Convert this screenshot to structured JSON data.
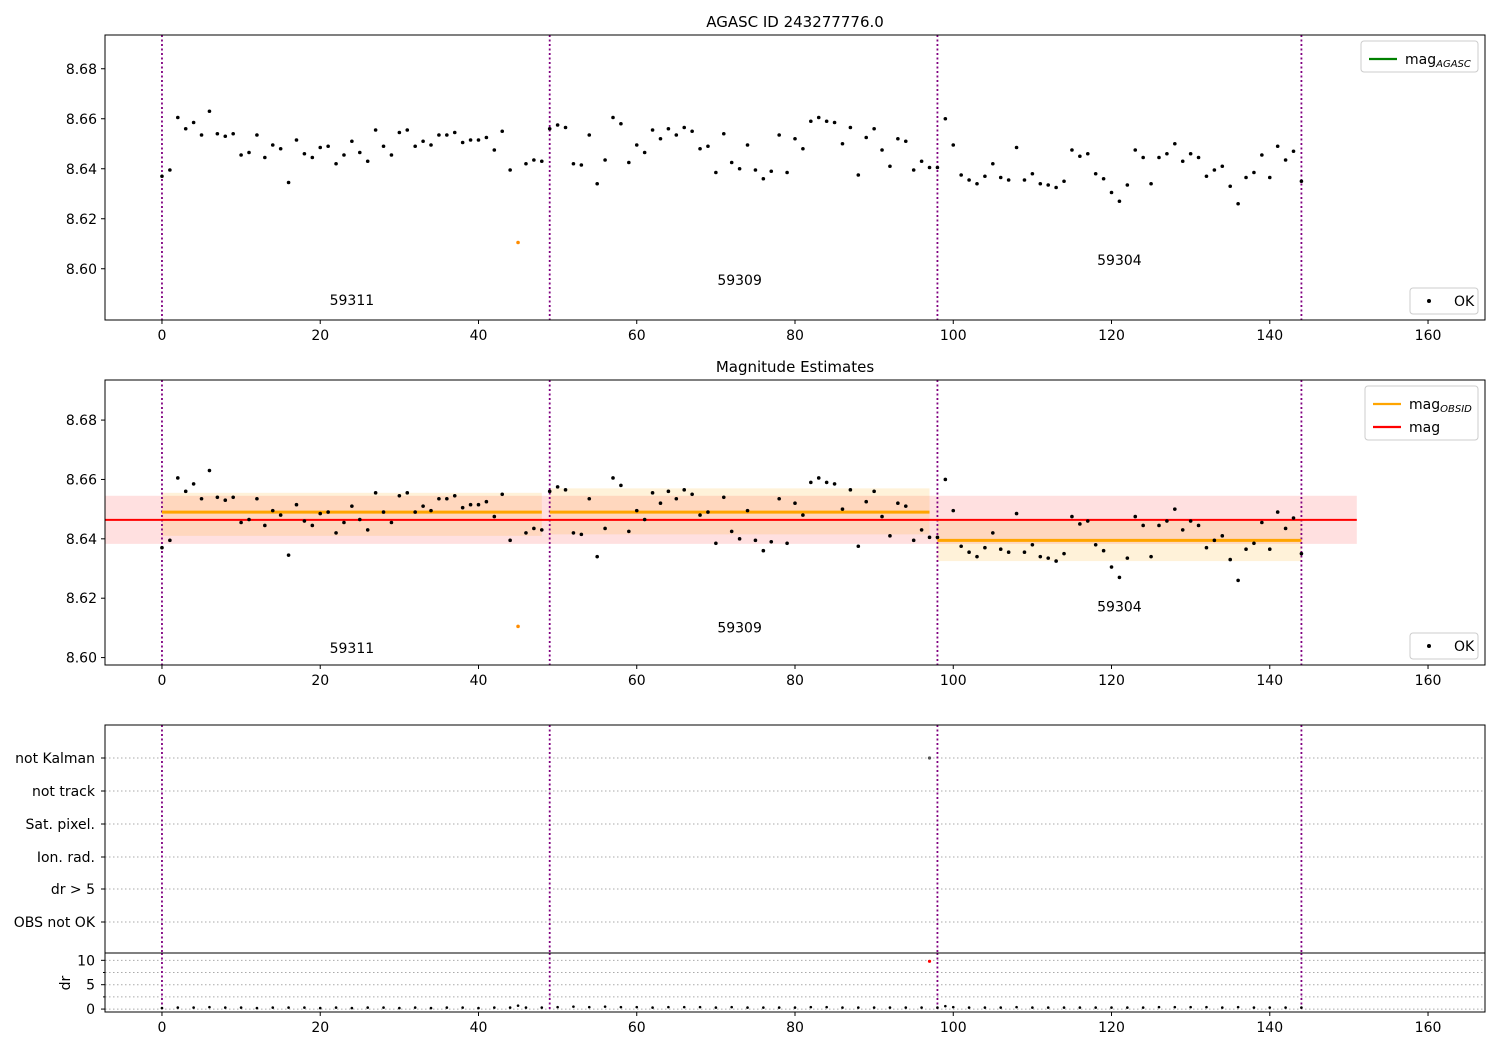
{
  "colors": {
    "ok_points": "#000000",
    "flagged_point": "#ff8c00",
    "obs_divider": "#800080",
    "mag_agasc_line": "#008000",
    "mag_obsid_line": "#ffa500",
    "mag_line": "#ff0000",
    "dr_flag": "#ff0000"
  },
  "chart_data": [
    {
      "type": "scatter",
      "title": "AGASC ID 243277776.0",
      "xlim": [
        -7.2,
        167.2
      ],
      "ylim": [
        8.5795,
        8.6935
      ],
      "yticks": [
        8.6,
        8.62,
        8.64,
        8.66,
        8.68
      ],
      "xticks": [
        0,
        20,
        40,
        60,
        80,
        100,
        120,
        140,
        160
      ],
      "obs_dividers": [
        0,
        49,
        98,
        144
      ],
      "obsids": [
        {
          "label": "59311",
          "x": 24,
          "y": 8.5855
        },
        {
          "label": "59309",
          "x": 73,
          "y": 8.5935
        },
        {
          "label": "59304",
          "x": 121,
          "y": 8.6015
        }
      ],
      "legend_upper": {
        "placement": "top-right",
        "entries": [
          {
            "label": "mag",
            "sub": "AGASC",
            "color": "#008000"
          }
        ]
      },
      "legend_lower": {
        "placement": "bottom-right",
        "entries": [
          {
            "label": "OK",
            "marker": "dot"
          }
        ]
      },
      "series": [
        {
          "name": "OK",
          "x": [
            0,
            1,
            2,
            3,
            4,
            5,
            6,
            7,
            8,
            9,
            10,
            11,
            12,
            13,
            14,
            15,
            16,
            17,
            18,
            19,
            20,
            21,
            22,
            23,
            24,
            25,
            26,
            27,
            28,
            29,
            30,
            31,
            32,
            33,
            34,
            35,
            36,
            37,
            38,
            39,
            40,
            41,
            42,
            43,
            44,
            46,
            47,
            48,
            49,
            50,
            51,
            52,
            53,
            54,
            55,
            56,
            57,
            58,
            59,
            60,
            61,
            62,
            63,
            64,
            65,
            66,
            67,
            68,
            69,
            70,
            71,
            72,
            73,
            74,
            75,
            76,
            77,
            78,
            79,
            80,
            81,
            82,
            83,
            84,
            85,
            86,
            87,
            88,
            89,
            90,
            91,
            92,
            93,
            94,
            95,
            96,
            97,
            98,
            99,
            100,
            101,
            102,
            103,
            104,
            105,
            106,
            107,
            108,
            109,
            110,
            111,
            112,
            113,
            114,
            115,
            116,
            117,
            118,
            119,
            120,
            121,
            122,
            123,
            124,
            125,
            126,
            127,
            128,
            129,
            130,
            131,
            132,
            133,
            134,
            135,
            136,
            137,
            138,
            139,
            140,
            141,
            142,
            143,
            144
          ],
          "y": [
            8.637,
            8.6395,
            8.6605,
            8.656,
            8.6585,
            8.6535,
            8.663,
            8.654,
            8.653,
            8.654,
            8.6455,
            8.6465,
            8.6535,
            8.6445,
            8.6495,
            8.648,
            8.6345,
            8.6515,
            8.646,
            8.6445,
            8.6485,
            8.649,
            8.642,
            8.6455,
            8.651,
            8.6465,
            8.643,
            8.6555,
            8.649,
            8.6455,
            8.6545,
            8.6555,
            8.649,
            8.651,
            8.6495,
            8.6535,
            8.6535,
            8.6545,
            8.6505,
            8.6515,
            8.6515,
            8.6525,
            8.6475,
            8.655,
            8.6395,
            8.642,
            8.6435,
            8.643,
            8.656,
            8.6575,
            8.6565,
            8.642,
            8.6415,
            8.6535,
            8.634,
            8.6435,
            8.6605,
            8.658,
            8.6425,
            8.6495,
            8.6465,
            8.6555,
            8.652,
            8.656,
            8.6535,
            8.6565,
            8.655,
            8.648,
            8.649,
            8.6385,
            8.654,
            8.6425,
            8.64,
            8.6495,
            8.6395,
            8.636,
            8.639,
            8.6535,
            8.6385,
            8.652,
            8.648,
            8.659,
            8.6605,
            8.659,
            8.6585,
            8.65,
            8.6565,
            8.6375,
            8.6525,
            8.656,
            8.6475,
            8.641,
            8.652,
            8.651,
            8.6395,
            8.643,
            8.6405,
            8.6405,
            8.66,
            8.6495,
            8.6375,
            8.6355,
            8.634,
            8.637,
            8.642,
            8.6365,
            8.6355,
            8.6485,
            8.6355,
            8.638,
            8.634,
            8.6335,
            8.6325,
            8.635,
            8.6475,
            8.645,
            8.646,
            8.638,
            8.636,
            8.6305,
            8.627,
            8.6335,
            8.6475,
            8.6445,
            8.634,
            8.6445,
            8.646,
            8.65,
            8.643,
            8.646,
            8.6445,
            8.637,
            8.6395,
            8.641,
            8.633,
            8.626,
            8.6365,
            8.6385,
            8.6455,
            8.6365,
            8.649,
            8.6435,
            8.647,
            8.635
          ]
        },
        {
          "name": "flagged",
          "x": [
            45
          ],
          "y": [
            8.6105
          ]
        }
      ]
    },
    {
      "type": "scatter",
      "title": "Magnitude Estimates",
      "xlim": [
        -7.2,
        167.2
      ],
      "ylim": [
        8.5975,
        8.6935
      ],
      "yticks": [
        8.6,
        8.62,
        8.64,
        8.66,
        8.68
      ],
      "xticks": [
        0,
        20,
        40,
        60,
        80,
        100,
        120,
        140,
        160
      ],
      "obs_dividers": [
        0,
        49,
        98,
        144
      ],
      "obsids": [
        {
          "label": "59311",
          "x": 24,
          "y": 8.6015
        },
        {
          "label": "59309",
          "x": 73,
          "y": 8.6085
        },
        {
          "label": "59304",
          "x": 121,
          "y": 8.6155
        }
      ],
      "mag": {
        "value": 8.6464,
        "lo": 8.6383,
        "hi": 8.6545,
        "x": [
          -7.2,
          151
        ]
      },
      "mag_obsid": [
        {
          "x": [
            0,
            48
          ],
          "value": 8.649,
          "lo": 8.641,
          "hi": 8.6555
        },
        {
          "x": [
            49,
            97
          ],
          "value": 8.649,
          "lo": 8.6415,
          "hi": 8.657
        },
        {
          "x": [
            98,
            144
          ],
          "value": 8.6395,
          "lo": 8.6325,
          "hi": 8.6465
        }
      ],
      "legend_upper": {
        "placement": "top-right",
        "entries": [
          {
            "label": "mag",
            "sub": "OBSID",
            "color": "#ffa500"
          },
          {
            "label": "mag",
            "sub": "",
            "color": "#ff0000"
          }
        ]
      },
      "legend_lower": {
        "placement": "bottom-right",
        "entries": [
          {
            "label": "OK",
            "marker": "dot"
          }
        ]
      },
      "series_ref": "same points as first panel"
    },
    {
      "type": "scatter",
      "title": "",
      "flag_labels": [
        "not Kalman",
        "not track",
        "Sat. pixel.",
        "Ion. rad.",
        "dr > 5",
        "OBS not OK"
      ],
      "flag_points": [
        {
          "flag": "not Kalman",
          "x": 97
        }
      ],
      "xticks": [
        0,
        20,
        40,
        60,
        80,
        100,
        120,
        140,
        160
      ],
      "obs_dividers": [
        0,
        49,
        98,
        144
      ],
      "dr": {
        "ylabel": "dr",
        "ylim": [
          -0.6,
          11.5
        ],
        "yticks": [
          0,
          5,
          10
        ],
        "x": [
          0,
          2,
          4,
          6,
          8,
          10,
          12,
          14,
          16,
          18,
          20,
          22,
          24,
          26,
          28,
          30,
          32,
          34,
          36,
          38,
          40,
          42,
          44,
          45,
          46,
          48,
          50,
          52,
          54,
          56,
          58,
          60,
          62,
          64,
          66,
          68,
          70,
          72,
          74,
          76,
          78,
          80,
          82,
          84,
          86,
          88,
          90,
          92,
          94,
          96,
          98,
          99,
          100,
          102,
          104,
          106,
          108,
          110,
          112,
          114,
          116,
          118,
          120,
          122,
          124,
          126,
          128,
          130,
          132,
          134,
          136,
          138,
          140,
          142,
          144
        ],
        "y": [
          0.2,
          0.3,
          0.3,
          0.4,
          0.3,
          0.3,
          0.2,
          0.3,
          0.3,
          0.3,
          0.2,
          0.3,
          0.2,
          0.3,
          0.3,
          0.2,
          0.3,
          0.2,
          0.3,
          0.3,
          0.2,
          0.3,
          0.3,
          0.7,
          0.3,
          0.3,
          0.4,
          0.5,
          0.4,
          0.5,
          0.4,
          0.4,
          0.3,
          0.4,
          0.4,
          0.4,
          0.3,
          0.4,
          0.3,
          0.3,
          0.3,
          0.3,
          0.4,
          0.4,
          0.3,
          0.3,
          0.3,
          0.3,
          0.3,
          0.3,
          0.3,
          0.6,
          0.4,
          0.3,
          0.3,
          0.3,
          0.4,
          0.3,
          0.3,
          0.3,
          0.3,
          0.3,
          0.3,
          0.3,
          0.3,
          0.4,
          0.4,
          0.4,
          0.4,
          0.3,
          0.4,
          0.3,
          0.3,
          0.3,
          0.3
        ],
        "flagged": {
          "x": [
            97
          ],
          "y": [
            9.8
          ]
        }
      }
    }
  ]
}
